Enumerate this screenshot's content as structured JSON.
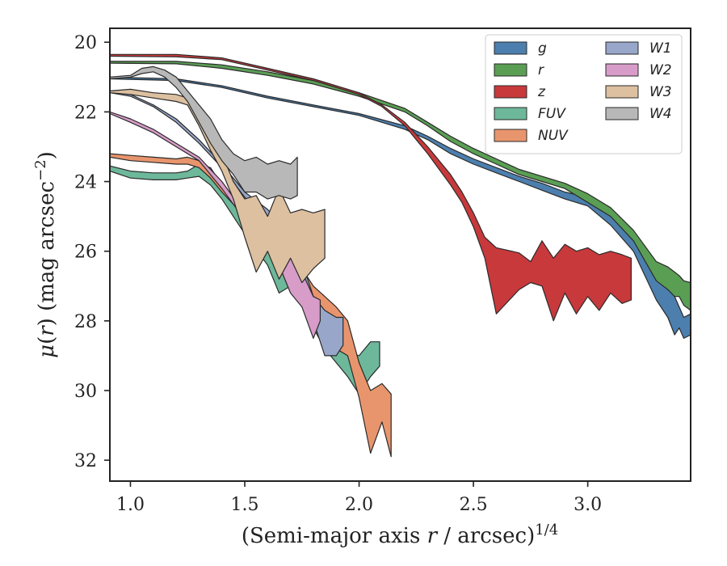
{
  "chart_data": {
    "type": "area",
    "xlabel": "(Semi-major axis r / arcsec)",
    "xlabel_parts": {
      "prefix": "(Semi-major axis ",
      "var": "r",
      "suffix": " / arcsec)",
      "exponent": "1/4"
    },
    "ylabel_parts": {
      "mu": "μ",
      "open": "(",
      "var": "r",
      "close": ")",
      "unit": " (mag arcsec",
      "exp": "−2",
      "end": ")"
    },
    "xlim": [
      0.91,
      3.45
    ],
    "ylim": [
      32.6,
      19.6
    ],
    "y_inverted": true,
    "xticks": [
      1.0,
      1.5,
      2.0,
      2.5,
      3.0
    ],
    "xtick_labels": [
      "1.0",
      "1.5",
      "2.0",
      "2.5",
      "3.0"
    ],
    "yticks": [
      20,
      22,
      24,
      26,
      28,
      30,
      32
    ],
    "ytick_labels": [
      "20",
      "22",
      "24",
      "26",
      "28",
      "30",
      "32"
    ],
    "grid": false,
    "legend_position": "top-right",
    "legend_columns": 2,
    "series": [
      {
        "name": "g",
        "color": "#4c7fae",
        "x": [
          0.91,
          1.2,
          1.4,
          1.6,
          1.8,
          2.0,
          2.2,
          2.3,
          2.4,
          2.5,
          2.6,
          2.7,
          2.8,
          2.9,
          3.0,
          3.1,
          3.2,
          3.3,
          3.35,
          3.38,
          3.4,
          3.42,
          3.45
        ],
        "y_top": [
          21.0,
          21.05,
          21.25,
          21.55,
          21.8,
          22.05,
          22.4,
          22.7,
          23.05,
          23.35,
          23.6,
          23.85,
          24.05,
          24.3,
          24.45,
          24.9,
          25.5,
          26.7,
          27.0,
          27.3,
          27.6,
          27.9,
          27.8
        ],
        "y_bot": [
          21.05,
          21.1,
          21.3,
          21.6,
          21.85,
          22.1,
          22.5,
          22.8,
          23.2,
          23.5,
          23.75,
          24.0,
          24.25,
          24.5,
          24.7,
          25.25,
          26.0,
          27.4,
          27.9,
          28.4,
          28.2,
          28.5,
          28.4
        ]
      },
      {
        "name": "r",
        "color": "#5a9e54",
        "x": [
          0.91,
          1.2,
          1.4,
          1.6,
          1.8,
          2.0,
          2.2,
          2.3,
          2.4,
          2.5,
          2.6,
          2.7,
          2.8,
          2.9,
          3.0,
          3.1,
          3.2,
          3.3,
          3.35,
          3.38,
          3.4,
          3.42,
          3.45
        ],
        "y_top": [
          20.55,
          20.55,
          20.65,
          20.85,
          21.1,
          21.45,
          21.9,
          22.3,
          22.7,
          23.05,
          23.35,
          23.65,
          23.85,
          24.05,
          24.35,
          24.75,
          25.4,
          26.3,
          26.45,
          26.6,
          26.7,
          26.85,
          26.9
        ],
        "y_bot": [
          20.6,
          20.62,
          20.75,
          20.95,
          21.2,
          21.55,
          22.0,
          22.4,
          22.85,
          23.2,
          23.5,
          23.8,
          24.0,
          24.2,
          24.6,
          25.0,
          25.7,
          26.85,
          27.1,
          27.3,
          27.3,
          27.55,
          27.7
        ]
      },
      {
        "name": "z",
        "color": "#c8393c",
        "x": [
          0.91,
          1.2,
          1.4,
          1.6,
          1.8,
          2.0,
          2.1,
          2.2,
          2.3,
          2.4,
          2.45,
          2.5,
          2.55,
          2.6,
          2.7,
          2.75,
          2.8,
          2.85,
          2.9,
          2.95,
          3.0,
          3.05,
          3.1,
          3.15,
          3.19
        ],
        "y_top": [
          20.35,
          20.35,
          20.45,
          20.75,
          21.05,
          21.45,
          21.8,
          22.3,
          23.0,
          23.8,
          24.3,
          24.9,
          25.6,
          25.9,
          26.05,
          26.3,
          25.7,
          26.2,
          25.8,
          26.0,
          25.9,
          26.1,
          26.0,
          26.1,
          26.2
        ],
        "y_bot": [
          20.4,
          20.42,
          20.5,
          20.8,
          21.1,
          21.5,
          21.85,
          22.4,
          23.2,
          24.1,
          24.6,
          25.3,
          26.2,
          27.8,
          27.1,
          26.9,
          27.0,
          28.0,
          27.2,
          27.8,
          27.3,
          27.7,
          27.2,
          27.5,
          27.4
        ]
      },
      {
        "name": "FUV",
        "color": "#6db89a",
        "x": [
          0.91,
          1.0,
          1.1,
          1.2,
          1.25,
          1.3,
          1.35,
          1.4,
          1.5,
          1.6,
          1.65,
          1.7,
          1.75,
          1.8,
          1.85,
          1.9,
          1.95,
          2.0,
          2.05,
          2.09
        ],
        "y_top": [
          23.55,
          23.7,
          23.75,
          23.75,
          23.7,
          23.5,
          23.6,
          24.1,
          24.9,
          25.9,
          26.4,
          26.7,
          27.0,
          27.6,
          28.1,
          28.6,
          28.9,
          29.0,
          28.6,
          28.6
        ],
        "y_bot": [
          23.7,
          23.9,
          23.95,
          23.95,
          23.9,
          23.85,
          24.1,
          24.5,
          25.5,
          26.4,
          27.2,
          27.0,
          27.4,
          28.2,
          28.8,
          29.2,
          29.6,
          30.1,
          29.6,
          29.3
        ]
      },
      {
        "name": "NUV",
        "color": "#e8956d",
        "x": [
          0.91,
          1.0,
          1.1,
          1.2,
          1.25,
          1.3,
          1.35,
          1.4,
          1.5,
          1.6,
          1.7,
          1.75,
          1.8,
          1.85,
          1.9,
          1.95,
          2.0,
          2.05,
          2.1,
          2.14
        ],
        "y_top": [
          23.2,
          23.25,
          23.3,
          23.35,
          23.3,
          23.4,
          23.7,
          24.2,
          24.7,
          25.3,
          25.9,
          26.5,
          27.0,
          27.3,
          27.6,
          28.0,
          29.2,
          30.0,
          29.8,
          30.1
        ],
        "y_bot": [
          23.3,
          23.4,
          23.45,
          23.5,
          23.5,
          23.6,
          23.9,
          24.3,
          25.0,
          25.6,
          26.2,
          26.9,
          27.6,
          28.2,
          28.8,
          29.0,
          30.2,
          31.8,
          30.9,
          31.9
        ]
      },
      {
        "name": "W1",
        "color": "#97a6c9",
        "x": [
          0.91,
          1.0,
          1.1,
          1.2,
          1.3,
          1.4,
          1.5,
          1.6,
          1.7,
          1.75,
          1.8,
          1.85,
          1.9,
          1.93
        ],
        "y_top": [
          21.4,
          21.5,
          21.8,
          22.2,
          22.8,
          23.5,
          24.3,
          24.8,
          25.5,
          26.3,
          27.3,
          27.7,
          27.9,
          27.9
        ],
        "y_bot": [
          21.45,
          21.55,
          21.85,
          22.3,
          22.9,
          23.6,
          24.45,
          25.2,
          26.0,
          26.8,
          28.0,
          29.0,
          29.0,
          28.7
        ]
      },
      {
        "name": "W2",
        "color": "#d89cc9",
        "x": [
          0.91,
          1.0,
          1.1,
          1.2,
          1.3,
          1.4,
          1.5,
          1.6,
          1.65,
          1.7,
          1.75,
          1.8,
          1.83
        ],
        "y_top": [
          22.0,
          22.2,
          22.5,
          22.9,
          23.3,
          24.0,
          24.9,
          25.6,
          26.0,
          26.2,
          26.6,
          27.3,
          27.4
        ],
        "y_bot": [
          22.05,
          22.3,
          22.6,
          23.0,
          23.4,
          24.2,
          25.1,
          25.9,
          26.4,
          27.2,
          27.6,
          28.5,
          28.0
        ]
      },
      {
        "name": "W3",
        "color": "#dcc0a0",
        "x": [
          0.91,
          1.0,
          1.1,
          1.2,
          1.25,
          1.3,
          1.35,
          1.4,
          1.45,
          1.5,
          1.55,
          1.6,
          1.65,
          1.7,
          1.75,
          1.8,
          1.85
        ],
        "y_top": [
          21.4,
          21.35,
          21.45,
          21.5,
          21.6,
          22.0,
          22.6,
          23.2,
          24.0,
          24.5,
          24.4,
          25.0,
          24.2,
          24.9,
          24.8,
          24.9,
          24.8
        ],
        "y_bot": [
          21.45,
          21.5,
          21.6,
          21.7,
          21.8,
          22.4,
          23.1,
          23.7,
          24.5,
          25.6,
          26.6,
          26.0,
          26.8,
          26.2,
          26.9,
          26.5,
          26.2
        ]
      },
      {
        "name": "W4",
        "color": "#b8b8b8",
        "x": [
          0.91,
          1.0,
          1.05,
          1.1,
          1.15,
          1.2,
          1.25,
          1.3,
          1.35,
          1.4,
          1.45,
          1.5,
          1.55,
          1.6,
          1.65,
          1.7,
          1.73
        ],
        "y_top": [
          21.0,
          20.95,
          20.75,
          20.7,
          20.8,
          21.0,
          21.4,
          21.8,
          22.2,
          22.8,
          23.2,
          23.4,
          23.3,
          23.5,
          23.4,
          23.5,
          23.3
        ],
        "y_bot": [
          21.05,
          21.0,
          20.9,
          20.85,
          21.0,
          21.3,
          21.7,
          22.3,
          22.9,
          23.4,
          23.8,
          24.3,
          24.3,
          24.5,
          24.4,
          24.5,
          24.4
        ]
      }
    ]
  }
}
